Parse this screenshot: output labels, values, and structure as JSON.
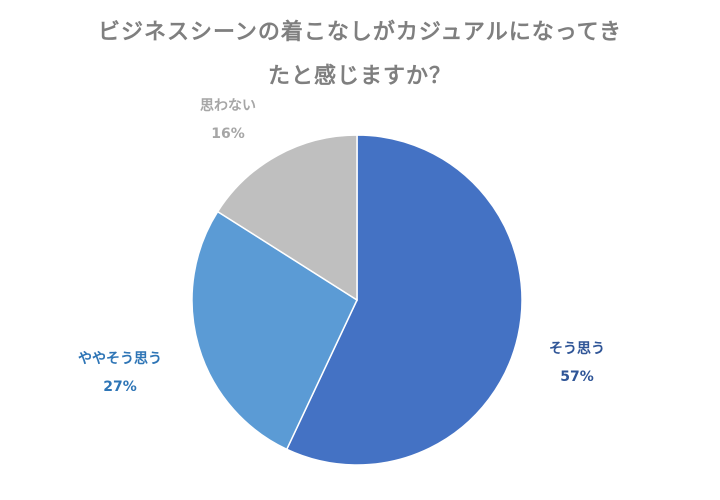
{
  "title": {
    "line1": "ビジネスシーンの着こなしがカジュアルになってき",
    "line2": "たと感じますか？"
  },
  "chart_data": {
    "type": "pie",
    "title": "ビジネスシーンの着こなしがカジュアルになってきたと感じますか？",
    "series": [
      {
        "label": "そう思う",
        "value": 57,
        "display": "57%",
        "color": "#4472c4",
        "label_color": "#2f5597"
      },
      {
        "label": "ややそう思う",
        "value": 27,
        "display": "27%",
        "color": "#5b9bd5",
        "label_color": "#2e75b6"
      },
      {
        "label": "思わない",
        "value": 16,
        "display": "16%",
        "color": "#bfbfbf",
        "label_color": "#a6a6a6"
      }
    ],
    "start": "12 o'clock",
    "direction": "clockwise",
    "legend": "none",
    "data_labels": "outside, category name and percentage"
  }
}
